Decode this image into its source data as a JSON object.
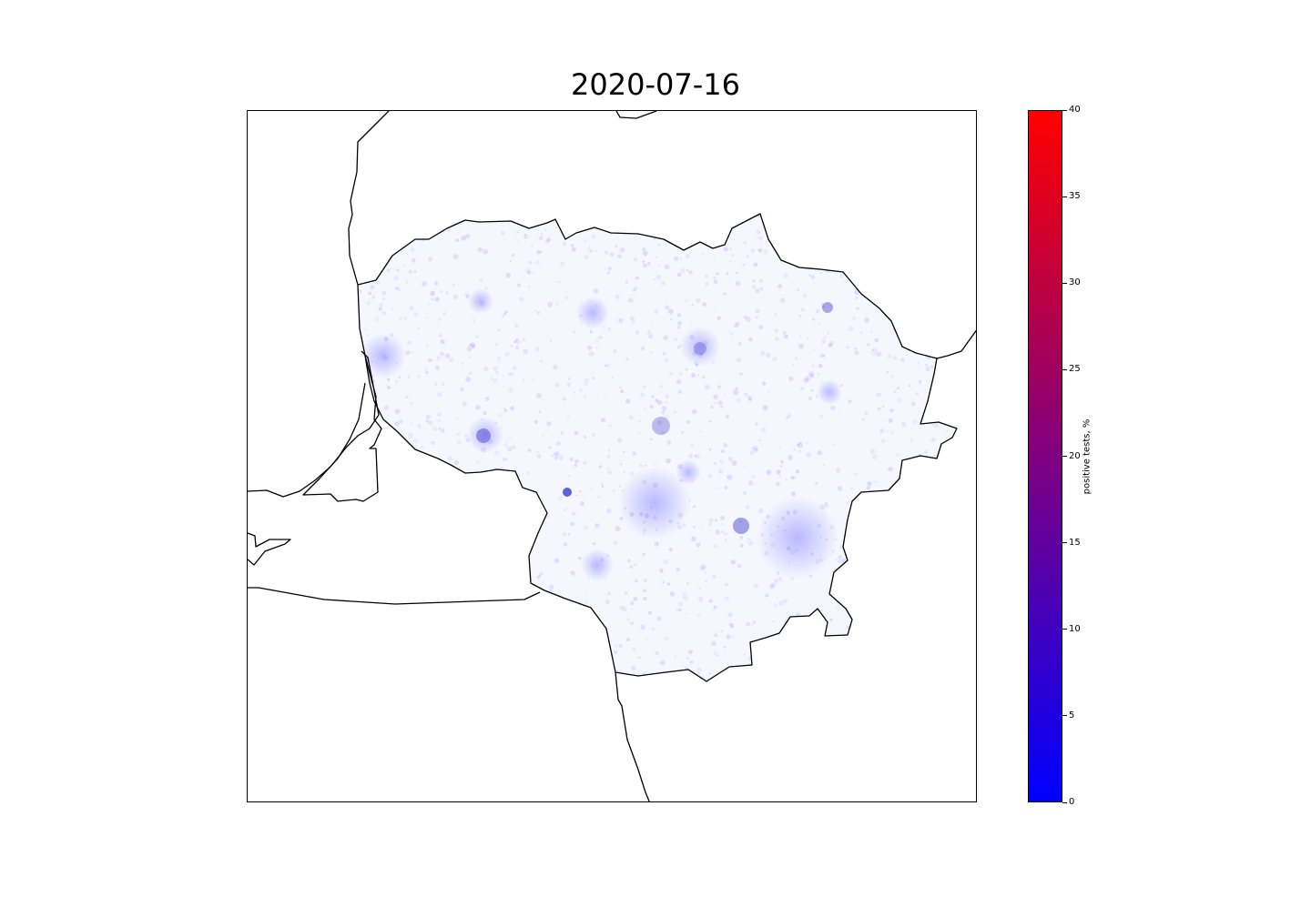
{
  "title": "2020-07-16",
  "colorbar": {
    "label": "positive tests, %",
    "min": 0,
    "max": 40,
    "ticks": [
      "0",
      "5",
      "10",
      "15",
      "20",
      "25",
      "30",
      "35",
      "40"
    ],
    "color_low": "#0000ff",
    "color_high": "#ff0000"
  },
  "map": {
    "region": "Lithuania",
    "border_color": "#000000",
    "point_color": "#0000ff",
    "hotspot_level": "low"
  }
}
